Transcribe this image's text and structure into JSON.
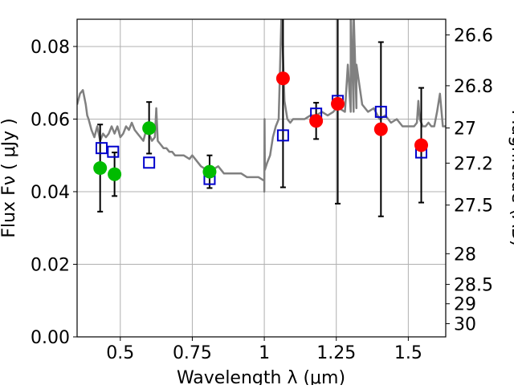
{
  "chart_data": {
    "type": "scatter",
    "title": "",
    "xlabel": "Wavelength  λ (μm)",
    "ylabel": "Flux  Fν  ( μJy )",
    "ylabel_right": "Magnitude (AB)",
    "xlim": [
      0.35,
      1.63
    ],
    "ylim": [
      0.0,
      0.0875
    ],
    "grid": true,
    "legend": "none",
    "x_ticks": [
      0.5,
      0.75,
      1.0,
      1.25,
      1.5
    ],
    "x_tick_labels": [
      "0.5",
      "0.75",
      "1",
      "1.25",
      "1.5"
    ],
    "y_ticks": [
      0.0,
      0.02,
      0.04,
      0.06,
      0.08
    ],
    "y_tick_labels": [
      "0.00",
      "0.02",
      "0.04",
      "0.06",
      "0.08"
    ],
    "right_ticks": [
      26.6,
      26.8,
      27.0,
      27.2,
      27.5,
      28.0,
      28.5,
      29.0,
      30.0
    ],
    "right_tick_labels": [
      "26.6",
      "26.8",
      "27",
      "27.2",
      "27.5",
      "28",
      "28.5",
      "29",
      "30"
    ],
    "colors": {
      "model": "#808080",
      "observed_green": "#00bb00",
      "observed_red": "#ff0000",
      "model_band": "#0000cc",
      "errorbar": "#000000",
      "grid": "#b0b0b0"
    },
    "series": [
      {
        "kind": "line",
        "color": "#808080",
        "x": [
          0.35,
          0.36,
          0.37,
          0.375,
          0.38,
          0.385,
          0.39,
          0.4,
          0.41,
          0.42,
          0.43,
          0.44,
          0.45,
          0.46,
          0.47,
          0.48,
          0.49,
          0.5,
          0.51,
          0.52,
          0.53,
          0.54,
          0.55,
          0.56,
          0.57,
          0.58,
          0.59,
          0.6,
          0.61,
          0.62,
          0.625,
          0.63,
          0.64,
          0.65,
          0.66,
          0.67,
          0.68,
          0.69,
          0.7,
          0.72,
          0.74,
          0.75,
          0.76,
          0.78,
          0.8,
          0.82,
          0.84,
          0.86,
          0.88,
          0.9,
          0.92,
          0.94,
          0.96,
          0.98,
          1.0,
          1.0,
          1.001,
          1.002,
          1.01,
          1.02,
          1.03,
          1.04,
          1.05,
          1.06,
          1.07,
          1.08,
          1.09,
          1.1,
          1.12,
          1.14,
          1.16,
          1.18,
          1.2,
          1.22,
          1.24,
          1.25,
          1.26,
          1.28,
          1.29,
          1.3,
          1.3,
          1.31,
          1.31,
          1.32,
          1.32,
          1.34,
          1.36,
          1.38,
          1.4,
          1.42,
          1.44,
          1.46,
          1.48,
          1.5,
          1.52,
          1.53,
          1.535,
          1.54,
          1.55,
          1.56,
          1.57,
          1.58,
          1.59,
          1.6,
          1.61,
          1.62,
          1.63
        ],
        "y": [
          0.064,
          0.067,
          0.068,
          0.066,
          0.064,
          0.061,
          0.06,
          0.057,
          0.055,
          0.058,
          0.054,
          0.056,
          0.055,
          0.056,
          0.058,
          0.056,
          0.058,
          0.055,
          0.056,
          0.058,
          0.057,
          0.059,
          0.057,
          0.056,
          0.055,
          0.054,
          0.057,
          0.056,
          0.054,
          0.055,
          0.063,
          0.054,
          0.053,
          0.052,
          0.052,
          0.051,
          0.051,
          0.05,
          0.05,
          0.05,
          0.049,
          0.05,
          0.049,
          0.047,
          0.046,
          0.046,
          0.047,
          0.045,
          0.045,
          0.045,
          0.045,
          0.044,
          0.044,
          0.044,
          0.043,
          0.04,
          0.06,
          0.046,
          0.048,
          0.05,
          0.055,
          0.058,
          0.06,
          0.09,
          0.065,
          0.06,
          0.059,
          0.06,
          0.06,
          0.06,
          0.061,
          0.061,
          0.062,
          0.061,
          0.062,
          0.063,
          0.063,
          0.062,
          0.075,
          0.062,
          0.09,
          0.062,
          0.09,
          0.063,
          0.075,
          0.064,
          0.062,
          0.063,
          0.06,
          0.061,
          0.059,
          0.06,
          0.058,
          0.058,
          0.058,
          0.059,
          0.065,
          0.06,
          0.058,
          0.058,
          0.059,
          0.058,
          0.058,
          0.062,
          0.067,
          0.058,
          0.058
        ]
      },
      {
        "kind": "points",
        "marker": "circle",
        "color": "#00bb00",
        "x": [
          0.43,
          0.48,
          0.6,
          0.81
        ],
        "y": [
          0.0465,
          0.0448,
          0.0575,
          0.0455
        ],
        "yerr_low": [
          0.012,
          0.006,
          0.007,
          0.0045
        ],
        "yerr_high": [
          0.012,
          0.006,
          0.0072,
          0.0045
        ]
      },
      {
        "kind": "points",
        "marker": "circle",
        "color": "#ff0000",
        "x": [
          1.065,
          1.18,
          1.255,
          1.405,
          1.545
        ],
        "y": [
          0.0712,
          0.0595,
          0.0642,
          0.0572,
          0.0528
        ],
        "yerr_low": [
          0.03,
          0.005,
          0.0275,
          0.024,
          0.0158
        ],
        "yerr_high": [
          0.03,
          0.005,
          0.0275,
          0.024,
          0.0158
        ]
      },
      {
        "kind": "points",
        "marker": "square",
        "color": "#0000cc",
        "x": [
          0.435,
          0.475,
          0.6,
          0.81,
          1.065,
          1.18,
          1.255,
          1.405,
          1.545
        ],
        "y": [
          0.052,
          0.051,
          0.048,
          0.0435,
          0.0555,
          0.0615,
          0.065,
          0.062,
          0.0508
        ]
      }
    ]
  }
}
